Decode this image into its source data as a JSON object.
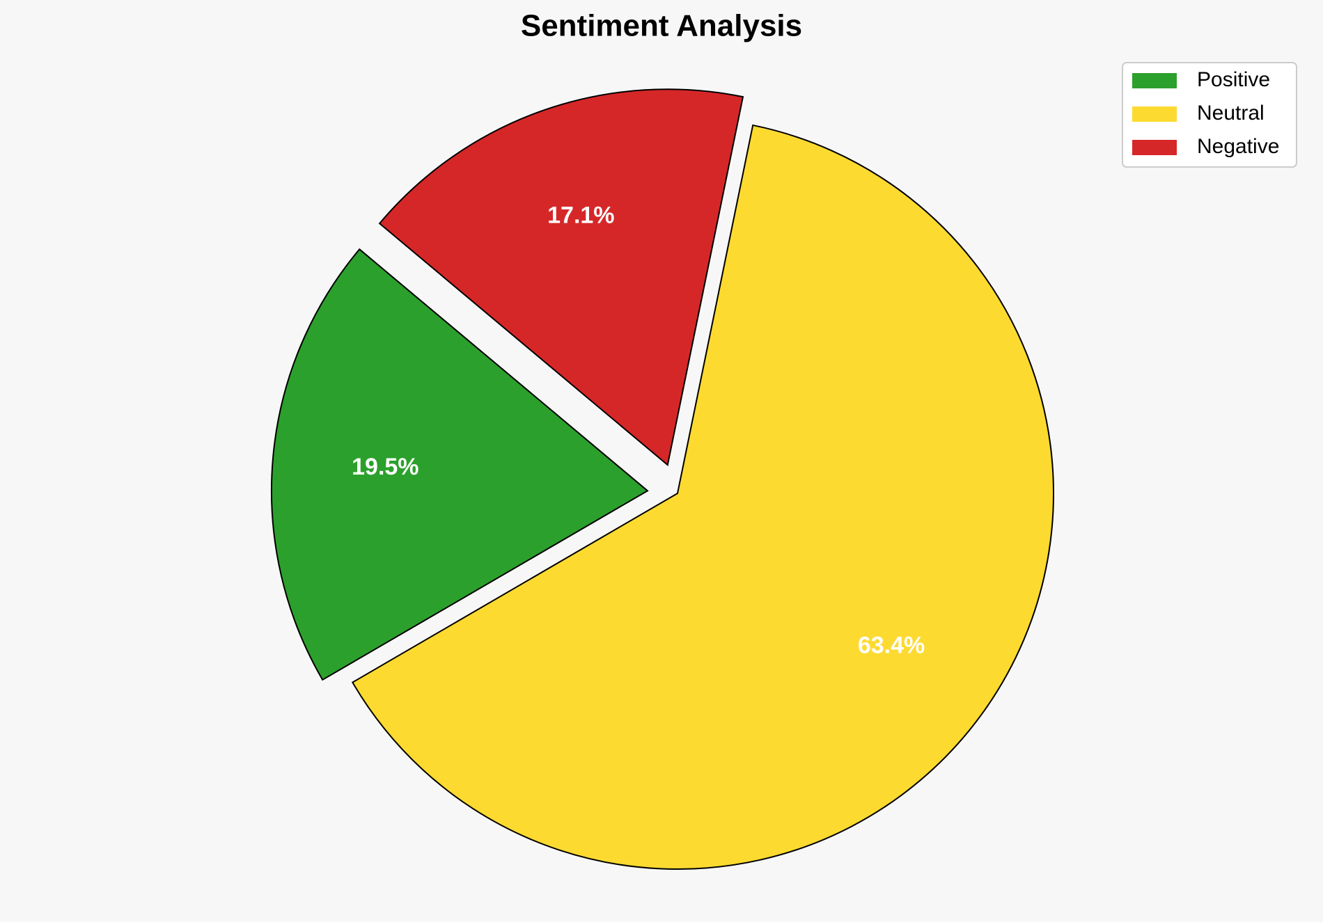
{
  "chart_data": {
    "type": "pie",
    "title": "Sentiment Analysis",
    "categories": [
      "Positive",
      "Neutral",
      "Negative"
    ],
    "values": [
      19.5,
      63.4,
      17.1
    ],
    "value_labels": [
      "19.5%",
      "63.4%",
      "17.1%"
    ],
    "colors": [
      "#2ca02c",
      "#fdda30",
      "#d62728"
    ],
    "explode": [
      0.08,
      0,
      0.08
    ],
    "startangle": 140,
    "legend": "upper right"
  }
}
